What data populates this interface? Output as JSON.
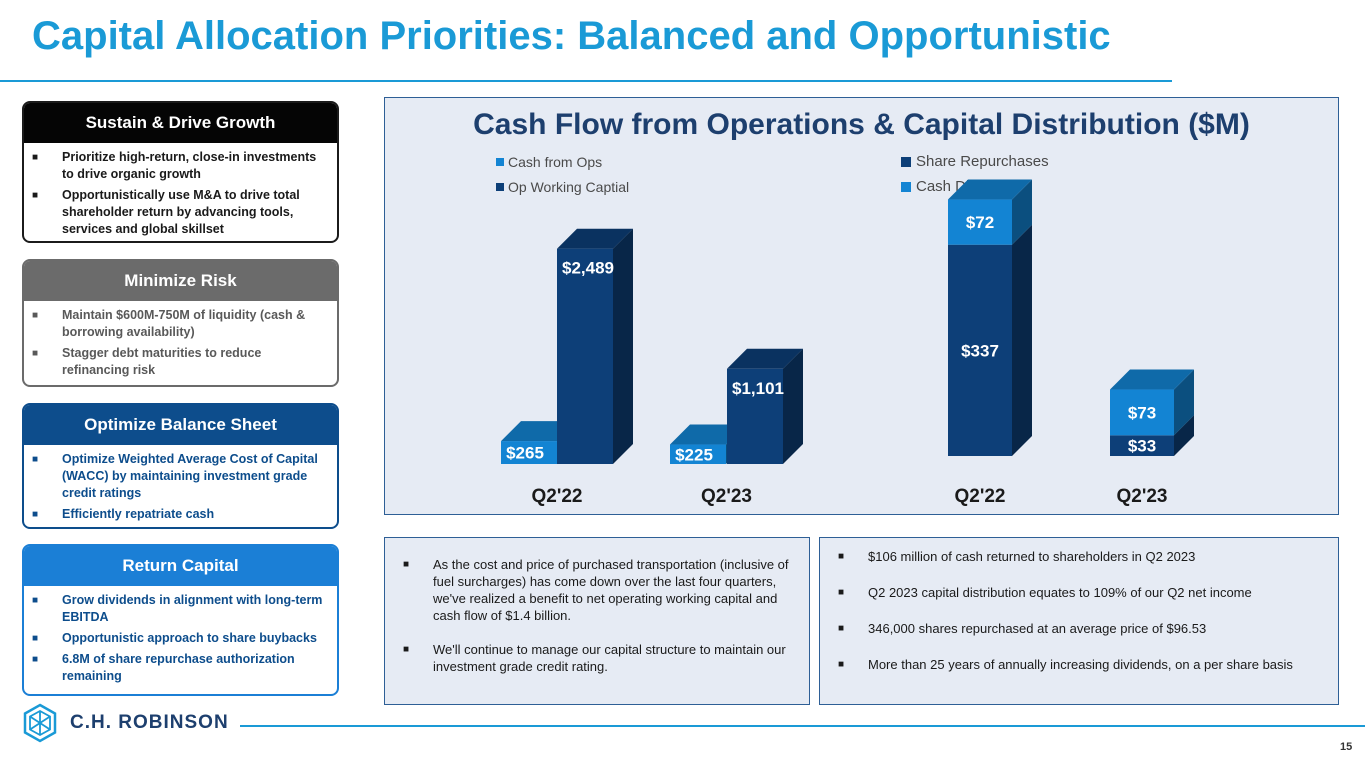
{
  "title": "Capital Allocation Priorities: Balanced and Opportunistic",
  "panels": [
    {
      "heading": "Sustain & Drive Growth",
      "items": [
        "Prioritize high-return, close-in investments to drive organic growth",
        "Opportunistically use M&A to drive total shareholder return by advancing tools, services and global skillset"
      ]
    },
    {
      "heading": "Minimize Risk",
      "items": [
        "Maintain $600M-750M of liquidity (cash & borrowing availability)",
        "Stagger debt maturities to reduce refinancing risk"
      ]
    },
    {
      "heading": "Optimize Balance Sheet",
      "items": [
        "Optimize Weighted Average Cost of Capital (WACC) by maintaining investment grade credit ratings",
        "Efficiently repatriate cash"
      ]
    },
    {
      "heading": "Return Capital",
      "items": [
        "Grow dividends in alignment with long-term EBITDA",
        "Opportunistic approach to share buybacks",
        "6.8M of share repurchase authorization remaining"
      ]
    }
  ],
  "bullet_glyph": "■",
  "colors": {
    "title": "#1a9ad6",
    "navy": "#0d3f78",
    "blue": "#1384d3",
    "panel_bg": "#e6ebf4"
  },
  "chart_data": [
    {
      "type": "bar",
      "title": "Cash Flow from Operations & Capital Distribution ($M)",
      "categories": [
        "Q2'22",
        "Q2'23"
      ],
      "series": [
        {
          "name": "Cash from Ops",
          "values": [
            265,
            225
          ],
          "labels": [
            "$265",
            "$225"
          ],
          "color": "#1384d3"
        },
        {
          "name": "Op Working Captial",
          "values": [
            2489,
            1101
          ],
          "labels": [
            "$2,489",
            "$1,101"
          ],
          "color": "#0d3f78"
        }
      ]
    },
    {
      "type": "bar",
      "stacked": true,
      "categories": [
        "Q2'22",
        "Q2'23"
      ],
      "series": [
        {
          "name": "Share Repurchases",
          "values": [
            337,
            33
          ],
          "labels": [
            "$337",
            "$33"
          ],
          "color": "#0d3f78"
        },
        {
          "name": "Cash Dividends",
          "values": [
            72,
            73
          ],
          "labels": [
            "$72",
            "$73"
          ],
          "color": "#1384d3"
        }
      ]
    }
  ],
  "notes_left": [
    "As the cost and price of purchased transportation (inclusive of fuel surcharges) has come down over the last four quarters, we've realized a benefit to net operating working capital and cash flow of $1.4 billion.",
    "We'll continue to manage our capital structure to maintain our investment grade credit rating."
  ],
  "notes_right": [
    "$106 million of cash returned to shareholders in Q2 2023",
    "Q2 2023 capital distribution equates to 109% of our Q2 net income",
    "346,000 shares repurchased at an average price of $96.53",
    "More than 25 years of annually increasing dividends, on a per share basis"
  ],
  "logo_text": "C.H. ROBINSON",
  "page_number": "15"
}
